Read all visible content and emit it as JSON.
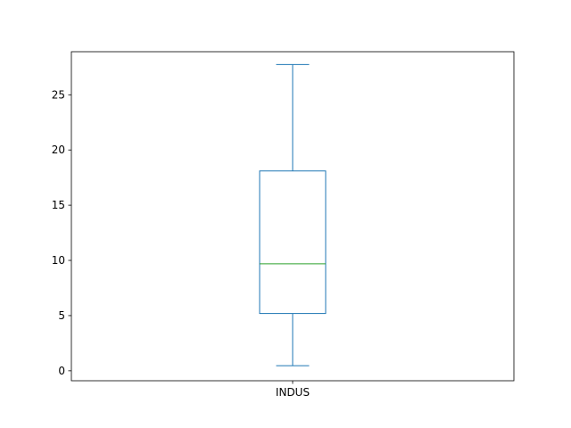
{
  "chart_data": {
    "type": "box",
    "categories": [
      "INDUS"
    ],
    "series": [
      {
        "values": {
          "whisker_low": 0.46,
          "q1": 5.19,
          "median": 9.69,
          "q3": 18.1,
          "whisker_high": 27.74
        },
        "outliers": []
      }
    ],
    "yticks": [
      0,
      5,
      10,
      15,
      20,
      25
    ],
    "ylim": [
      -0.9,
      28.9
    ],
    "grid": false,
    "colors": {
      "box": "#1f77b4",
      "median": "#2ca02c",
      "axes": "#000000",
      "background": "#ffffff"
    }
  }
}
